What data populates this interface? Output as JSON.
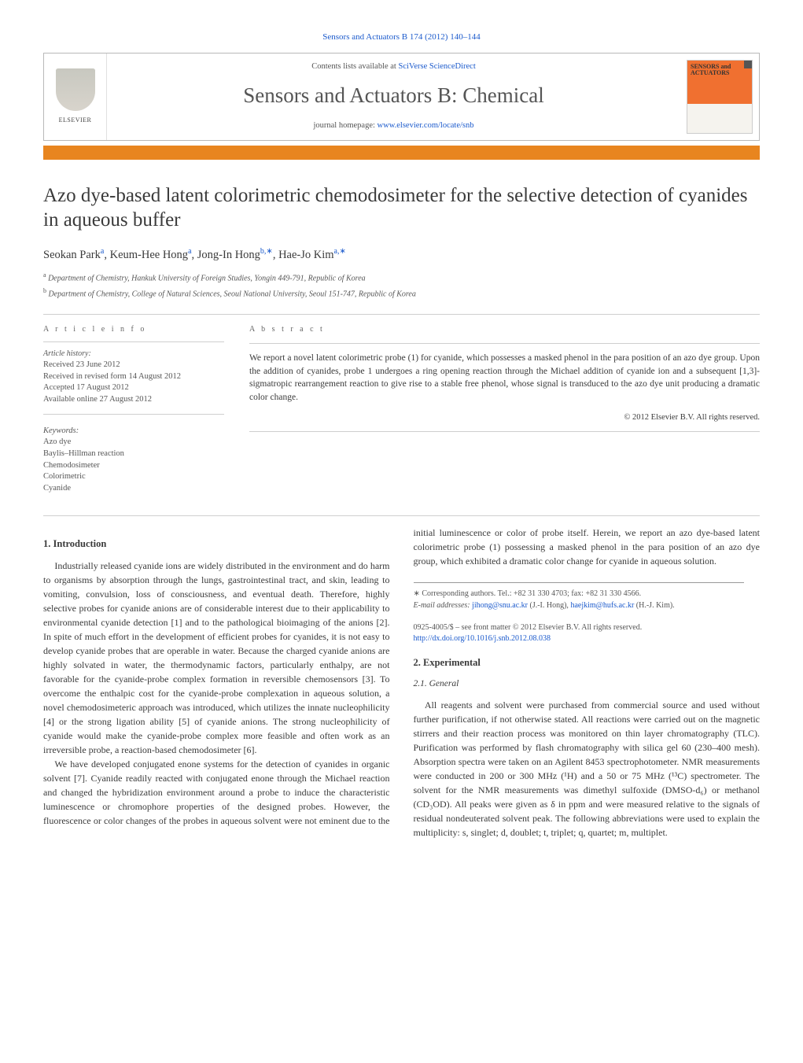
{
  "journal_ref": {
    "text": "Sensors and Actuators B 174 (2012) 140–144",
    "link_text": "Sensors and Actuators B 174 (2012) 140–144"
  },
  "header": {
    "contents_prefix": "Contents lists available at ",
    "contents_link": "SciVerse ScienceDirect",
    "journal_name": "Sensors and Actuators B: Chemical",
    "homepage_prefix": "journal homepage: ",
    "homepage_link": "www.elsevier.com/locate/snb",
    "publisher_name": "ELSEVIER",
    "cover_title": "SENSORS and ACTUATORS"
  },
  "title": "Azo dye-based latent colorimetric chemodosimeter for the selective detection of cyanides in aqueous buffer",
  "authors": [
    {
      "name": "Seokan Park",
      "sup": "a"
    },
    {
      "name": "Keum-Hee Hong",
      "sup": "a"
    },
    {
      "name": "Jong-In Hong",
      "sup": "b,∗"
    },
    {
      "name": "Hae-Jo Kim",
      "sup": "a,∗"
    }
  ],
  "affiliations": [
    {
      "sup": "a",
      "text": "Department of Chemistry, Hankuk University of Foreign Studies, Yongin 449-791, Republic of Korea"
    },
    {
      "sup": "b",
      "text": "Department of Chemistry, College of Natural Sciences, Seoul National University, Seoul 151-747, Republic of Korea"
    }
  ],
  "article_info_head": "a r t i c l e   i n f o",
  "abstract_head": "a b s t r a c t",
  "history": {
    "label": "Article history:",
    "received": "Received 23 June 2012",
    "revised": "Received in revised form 14 August 2012",
    "accepted": "Accepted 17 August 2012",
    "online": "Available online 27 August 2012"
  },
  "keywords": {
    "label": "Keywords:",
    "items": [
      "Azo dye",
      "Baylis–Hillman reaction",
      "Chemodosimeter",
      "Colorimetric",
      "Cyanide"
    ]
  },
  "abstract_text": "We report a novel latent colorimetric probe (1) for cyanide, which possesses a masked phenol in the para position of an azo dye group. Upon the addition of cyanides, probe 1 undergoes a ring opening reaction through the Michael addition of cyanide ion and a subsequent [1,3]-sigmatropic rearrangement reaction to give rise to a stable free phenol, whose signal is transduced to the azo dye unit producing a dramatic color change.",
  "abstract_copyright": "© 2012 Elsevier B.V. All rights reserved.",
  "sections": {
    "intro_head": "1. Introduction",
    "intro_p1": "Industrially released cyanide ions are widely distributed in the environment and do harm to organisms by absorption through the lungs, gastrointestinal tract, and skin, leading to vomiting, convulsion, loss of consciousness, and eventual death. Therefore, highly selective probes for cyanide anions are of considerable interest due to their applicability to environmental cyanide detection [1] and to the pathological bioimaging of the anions [2]. In spite of much effort in the development of efficient probes for cyanides, it is not easy to develop cyanide probes that are operable in water. Because the charged cyanide anions are highly solvated in water, the thermodynamic factors, particularly enthalpy, are not favorable for the cyanide-probe complex formation in reversible chemosensors [3]. To overcome the enthalpic cost for the cyanide-probe complexation in aqueous solution, a novel chemodosimeteric approach was introduced, which utilizes the innate nucleophilicity [4] or the strong ligation ability [5] of cyanide anions. The strong nucleophilicity of cyanide would make the cyanide-probe complex more feasible and often work as an irreversible probe, a reaction-based chemodosimeter [6].",
    "intro_p2": "We have developed conjugated enone systems for the detection of cyanides in organic solvent [7]. Cyanide readily reacted with conjugated enone through the Michael reaction and changed the hybridization environment around a probe to induce the characteristic luminescence or chromophore properties of the designed probes. However, the fluorescence or color changes of the probes in aqueous solvent were not eminent due to the initial luminescence or color of probe itself. Herein, we report an azo dye-based latent colorimetric probe (1) possessing a masked phenol in the para position of an azo dye group, which exhibited a dramatic color change for cyanide in aqueous solution.",
    "exp_head": "2. Experimental",
    "exp_sub": "2.1. General",
    "exp_p1": "All reagents and solvent were purchased from commercial source and used without further purification, if not otherwise stated. All reactions were carried out on the magnetic stirrers and their reaction process was monitored on thin layer chromatography (TLC). Purification was performed by flash chromatography with silica gel 60 (230–400 mesh). Absorption spectra were taken on an Agilent 8453 spectrophotometer. NMR measurements were conducted in 200 or 300 MHz (¹H) and a 50 or 75 MHz (¹³C) spectrometer. The solvent for the NMR measurements was dimethyl sulfoxide (DMSO-d₆) or methanol (CD₃OD). All peaks were given as δ in ppm and were measured relative to the signals of residual nondeuterated solvent peak. The following abbreviations were used to explain the multiplicity: s, singlet; d, doublet; t, triplet; q, quartet; m, multiplet."
  },
  "footnote": {
    "corr_label": "∗ Corresponding authors. Tel.: +82 31 330 4703; fax: +82 31 330 4566.",
    "email_label": "E-mail addresses:",
    "email1": "jihong@snu.ac.kr",
    "email1_who": "(J.-I. Hong),",
    "email2": "haejkim@hufs.ac.kr",
    "email2_who": "(H.-J. Kim)."
  },
  "bottom": {
    "issn_line": "0925-4005/$ – see front matter © 2012 Elsevier B.V. All rights reserved.",
    "doi": "http://dx.doi.org/10.1016/j.snb.2012.08.038"
  },
  "colors": {
    "link": "#1b5acc",
    "orange_bar": "#e8851f",
    "text": "#3a3a3a",
    "rule": "#cfcfcf"
  }
}
